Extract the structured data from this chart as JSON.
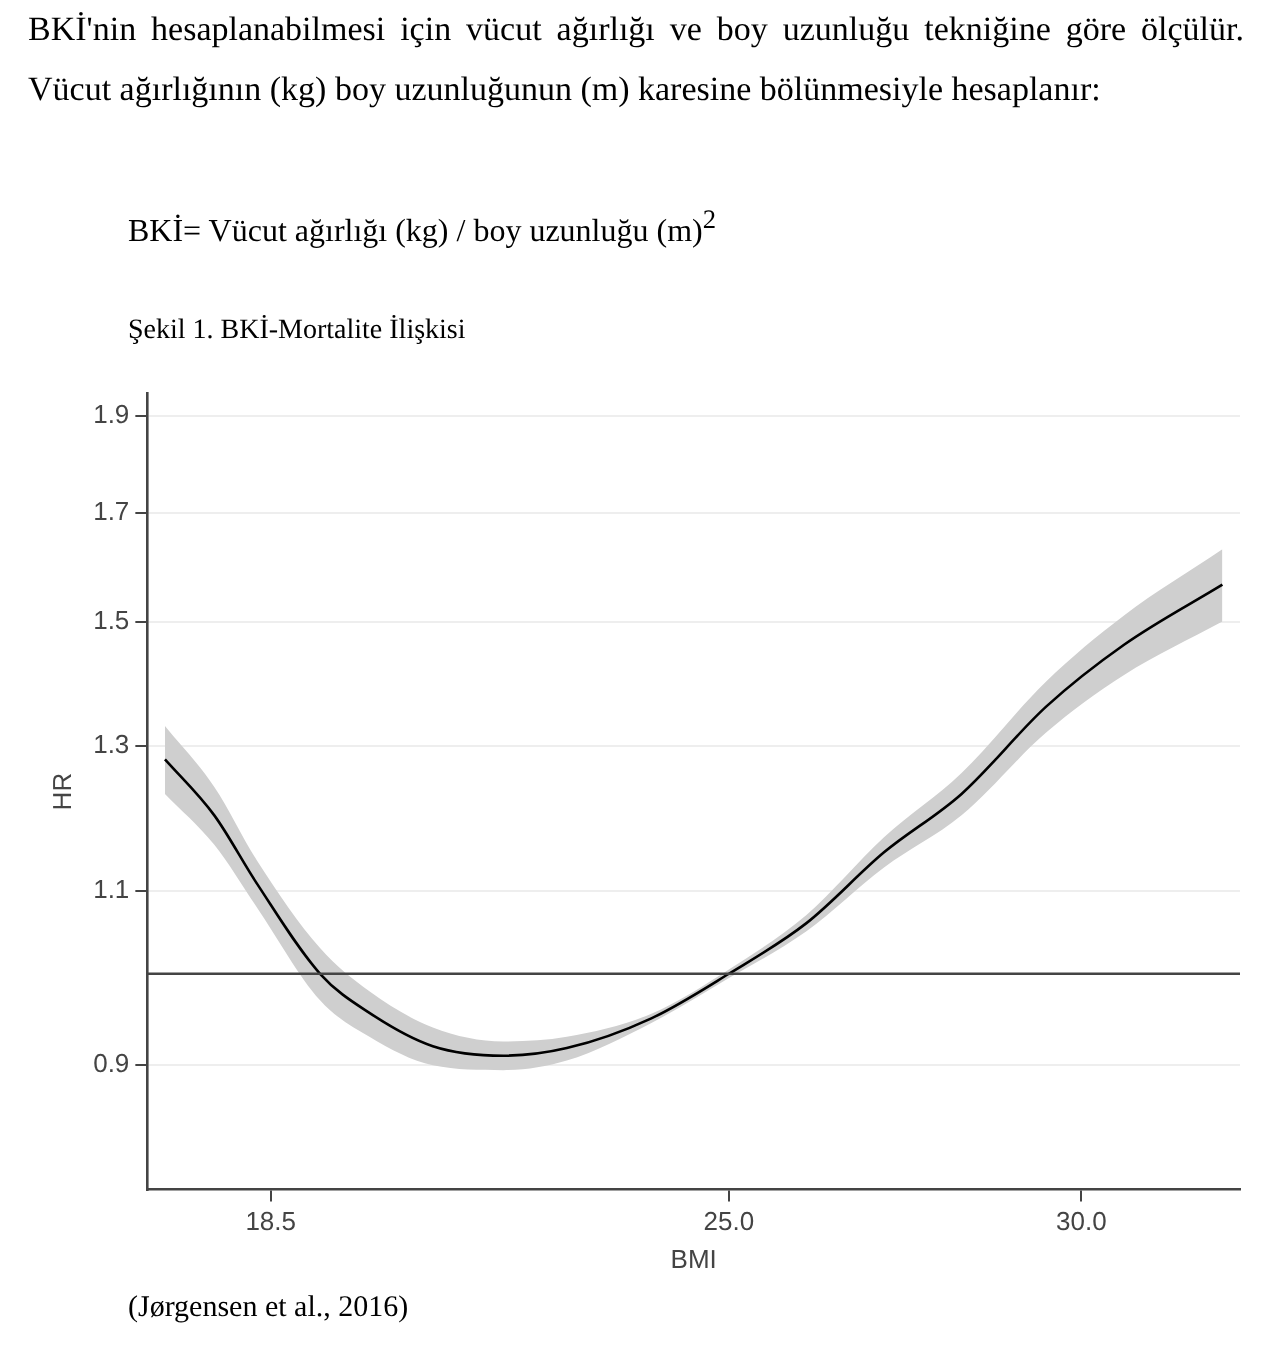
{
  "chart_data": {
    "type": "line",
    "title": "Şekil 1. BKİ-Mortalite İlişkisi",
    "annotations": [
      "BKİ'nin hesaplanabilmesi için vücut ağırlığı ve boy uzunluğu tekniğine göre ölçülür. Vücut ağırlığının (kg) boy uzunluğunun (m) karesine bölünmesiyle hesaplanır:",
      "BKİ= Vücut ağırlığı (kg) / boy uzunluğu (m)$^{2}$",
      "(Jørgensen et al., 2016)"
    ],
    "xlabel": "BMI",
    "ylabel": "HR",
    "x": [
      17.0,
      17.7,
      18.3,
      19.2,
      19.9,
      20.8,
      21.8,
      22.7,
      23.9,
      25.0,
      26.1,
      27.2,
      28.3,
      29.5,
      30.6,
      32.0
    ],
    "series": [
      {
        "color": "#000000",
        "values": [
          1.28,
          1.2,
          1.11,
          1.0,
          0.956,
          0.92,
          0.91,
          0.918,
          0.95,
          1.0,
          1.06,
          1.15,
          1.23,
          1.36,
          1.46,
          1.565
        ],
        "lower": [
          1.23,
          1.16,
          1.08,
          0.97,
          0.93,
          0.9,
          0.895,
          0.905,
          0.945,
          0.995,
          1.05,
          1.13,
          1.2,
          1.32,
          1.41,
          1.5
        ],
        "upper": [
          1.33,
          1.24,
          1.14,
          1.03,
          0.98,
          0.94,
          0.925,
          0.93,
          0.955,
          1.005,
          1.07,
          1.17,
          1.26,
          1.4,
          1.51,
          1.63
        ]
      }
    ],
    "xlim": [
      16.75,
      32.25
    ],
    "xticks": [
      18.5,
      {
        "value": 25,
        "label": "25.0"
      },
      {
        "value": 30,
        "label": "30.0"
      }
    ],
    "ylim": [
      0.78,
      1.95
    ],
    "yticks": [
      0.9,
      1.1,
      1.3,
      1.5,
      1.7,
      1.9
    ],
    "log": "y",
    "grid": "y",
    "marker": "none",
    "ref_lines": [
      {
        "axis": "y",
        "value": 1,
        "color": "#444444"
      }
    ]
  }
}
